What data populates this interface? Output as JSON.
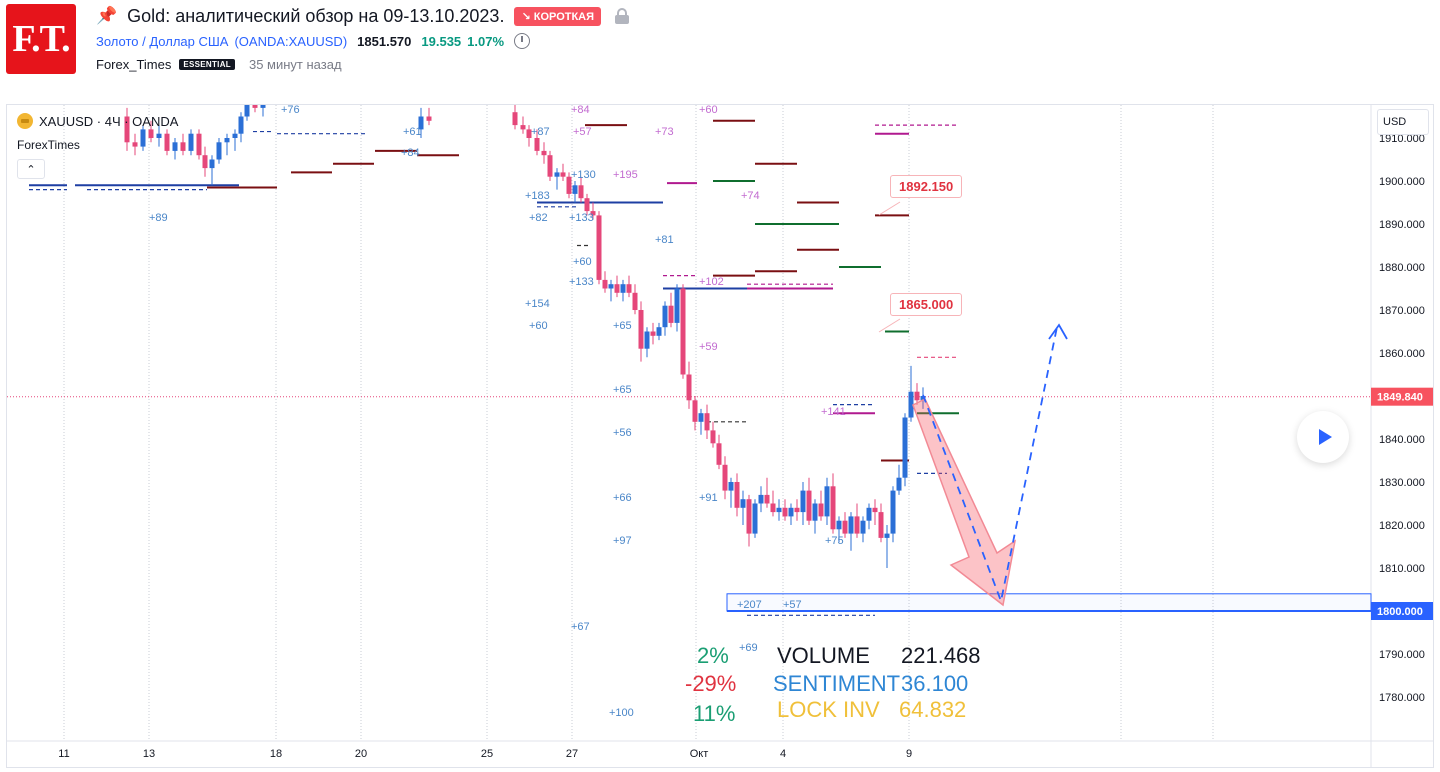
{
  "header": {
    "logo_text": "F.T.",
    "title": "Gold: аналитический обзор на 09-13.10.2023.",
    "direction_badge": "↘ КОРОТКАЯ",
    "symbol_link": "Золото / Доллар США",
    "symbol_code": "(OANDA:XAUUSD)",
    "price": "1851.570",
    "change": "19.535",
    "change_pct": "1.07%",
    "author": "Forex_Times",
    "author_badge": "ESSENTIAL",
    "published": "35 минут назад"
  },
  "chart": {
    "legend_title": "XAUUSD · 4Ч · OANDA",
    "legend_sub": "ForexTimes",
    "collapse_label": "⌃",
    "currency": "USD",
    "price_axis": [
      "1910.000",
      "1900.000",
      "1890.000",
      "1880.000",
      "1870.000",
      "1860.000",
      "1850.000",
      "1840.000",
      "1830.000",
      "1820.000",
      "1810.000",
      "1800.000",
      "1790.000",
      "1780.000"
    ],
    "current_price_label": "1849.840",
    "level_label": "1800.000",
    "time_axis": [
      "11",
      "13",
      "18",
      "20",
      "25",
      "27",
      "Окт",
      "4",
      "9"
    ],
    "callouts": [
      "1892.150",
      "1865.000"
    ],
    "annotations": [
      "+84",
      "+87",
      "+57",
      "+73",
      "+60",
      "+61",
      "+76",
      "+84",
      "+130",
      "+195",
      "+183",
      "+82",
      "+133",
      "+74",
      "+89",
      "+81",
      "+60",
      "+133",
      "+102",
      "+154",
      "+65",
      "+60",
      "+59",
      "+65",
      "+56",
      "+141",
      "+66",
      "+91",
      "+97",
      "+75",
      "+207",
      "+57",
      "+67",
      "+69",
      "+100"
    ]
  },
  "stats": {
    "pct1": "2%",
    "pct2": "-29%",
    "pct3": "11%",
    "volume_label": "VOLUME",
    "volume_value": "221.468",
    "sentiment_label": "SENTIMENT",
    "sentiment_value": "36.100",
    "lock_label": "LOCK INV",
    "lock_value": "64.832"
  },
  "colors": {
    "bull": "#2b6fd6",
    "bear": "#e5477a",
    "accent_red": "#e03340",
    "level_blue": "#2962ff",
    "sentiment_blue": "#2e86d4",
    "lock_yellow": "#f0c03a",
    "green_pct": "#1a9e73"
  },
  "icons": [
    "pin-icon",
    "lock-icon",
    "alarm-icon",
    "coin-icon",
    "play-icon"
  ]
}
